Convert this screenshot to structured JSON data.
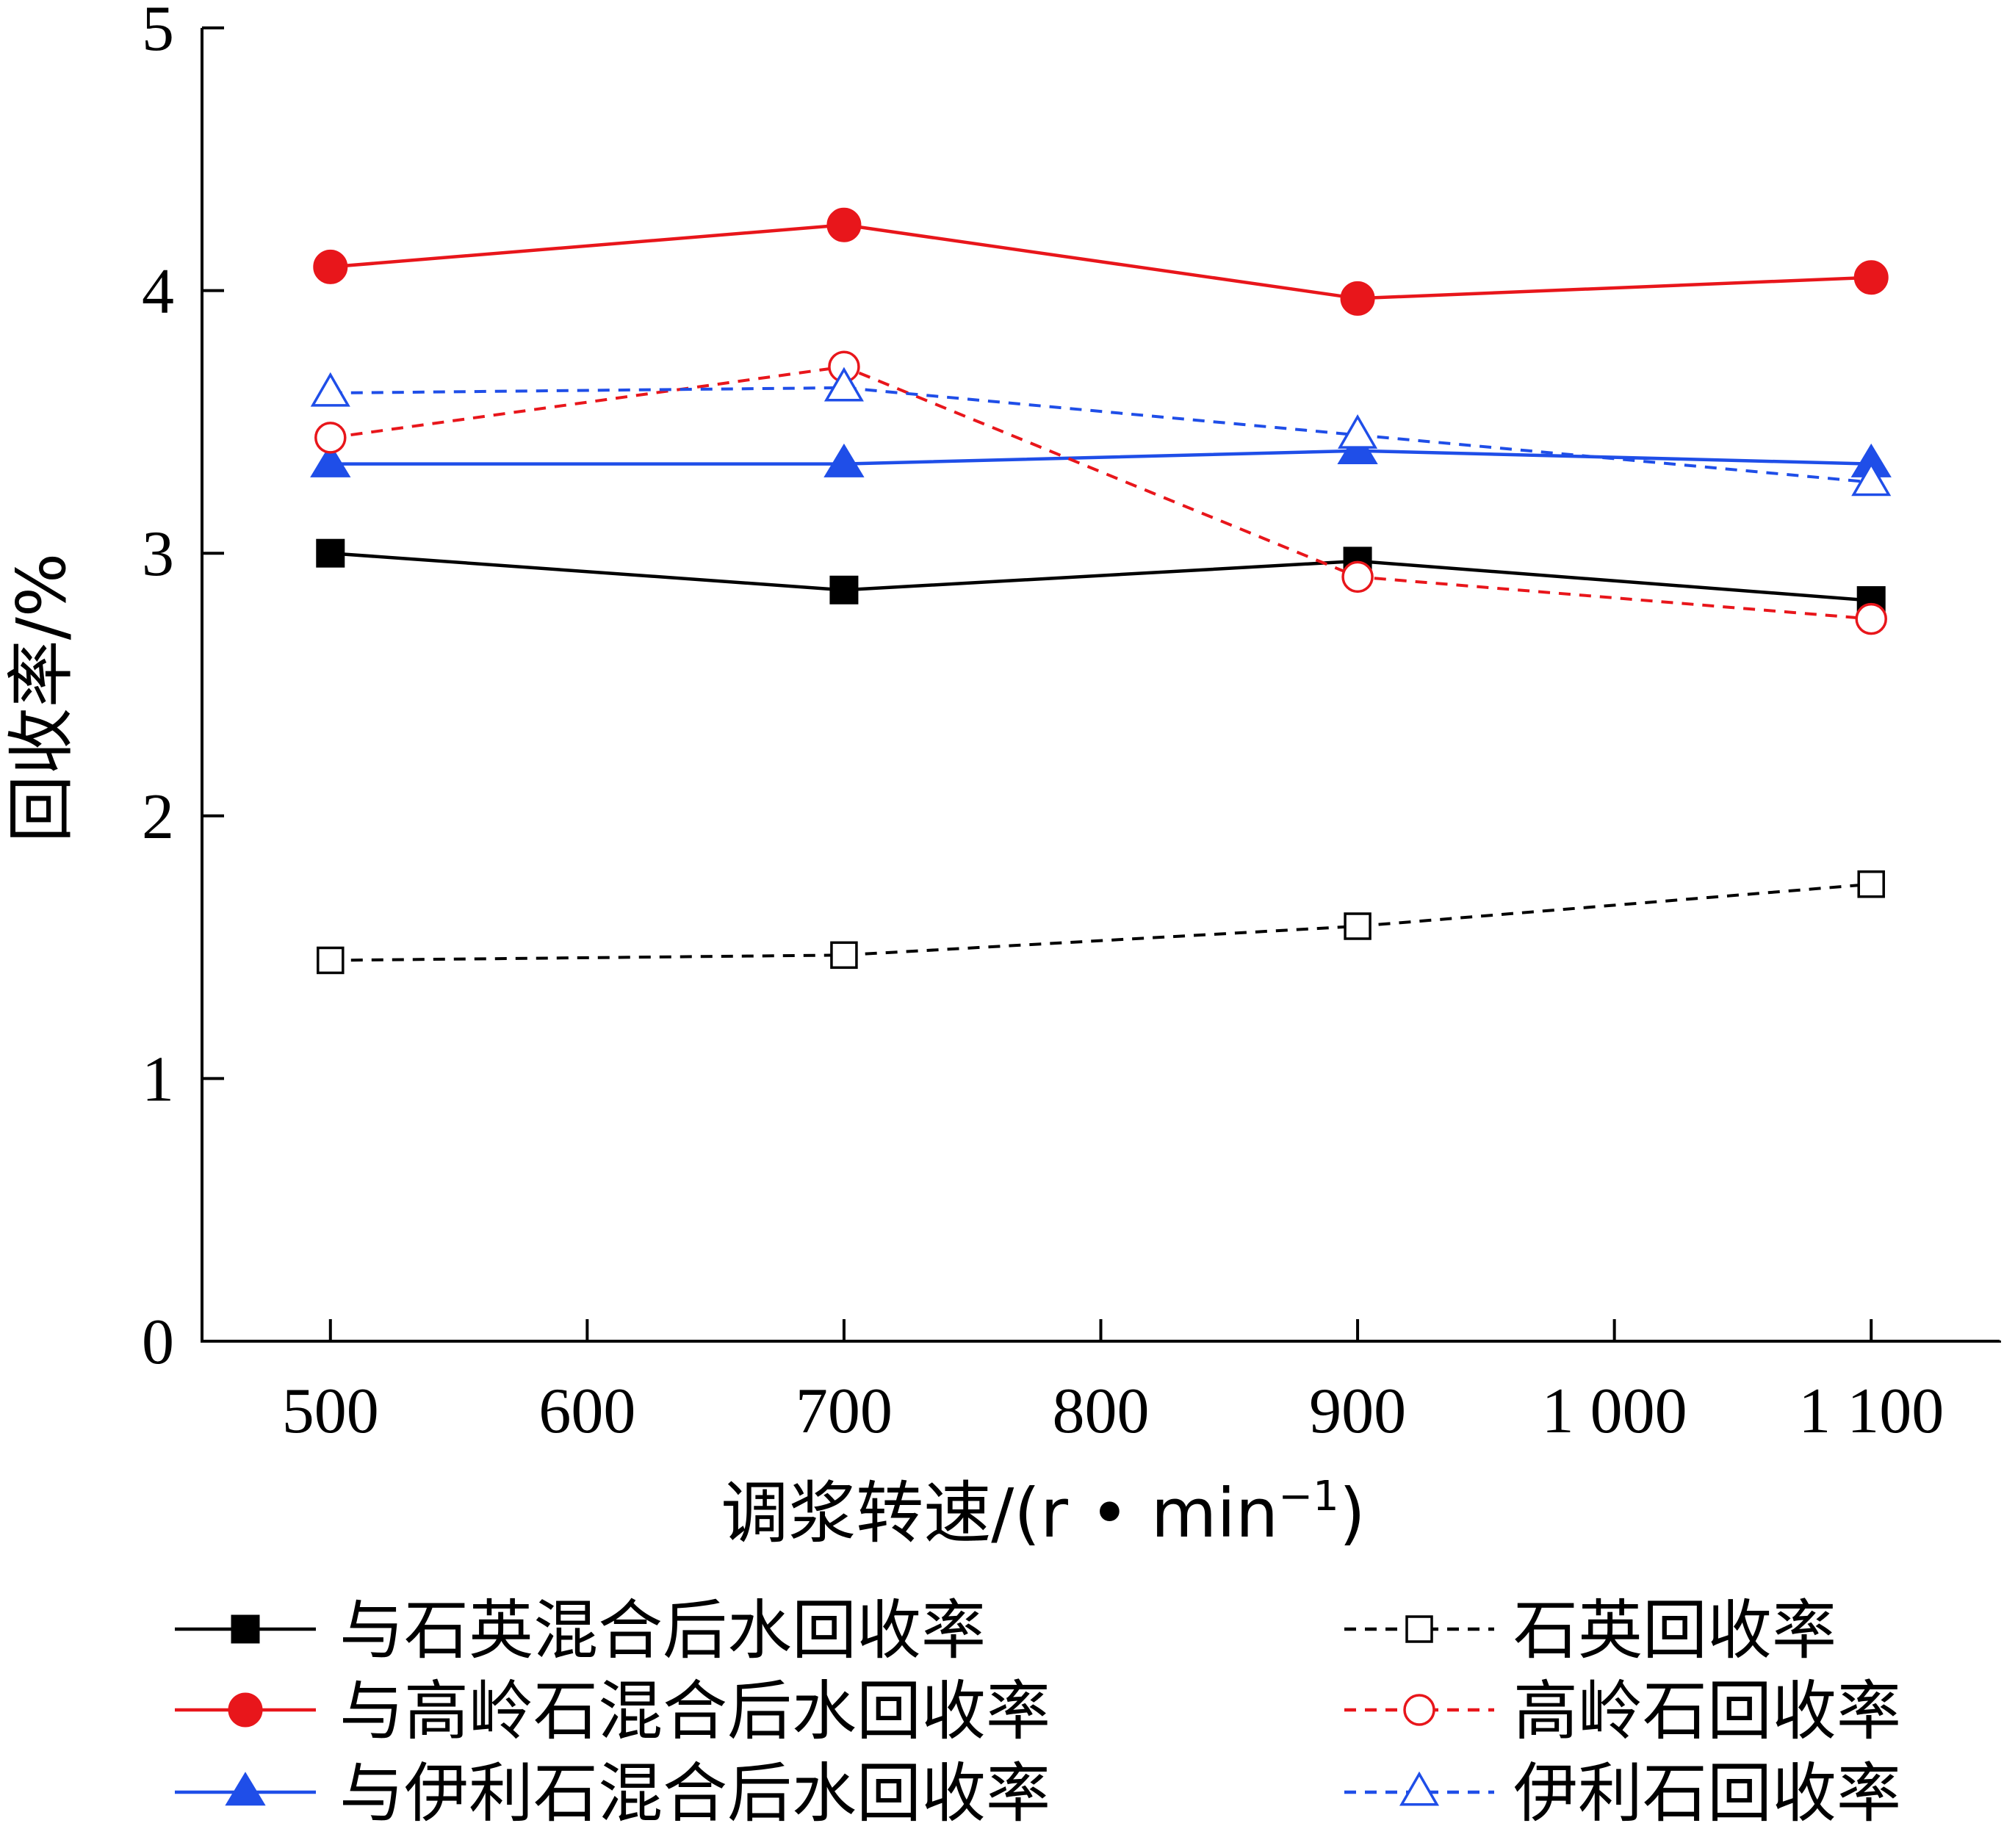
{
  "chart_data": {
    "type": "line",
    "xlabel": "调浆转速/(r • min",
    "xlabel_sup": "−1",
    "xlabel_close": ")",
    "ylabel": "回收率/%",
    "xlim": [
      450,
      1150
    ],
    "ylim": [
      0,
      5
    ],
    "x_ticks": [
      500,
      600,
      700,
      800,
      900,
      1000,
      1100
    ],
    "x_tick_labels": [
      "500",
      "600",
      "700",
      "800",
      "900",
      "1 000",
      "1 100"
    ],
    "y_ticks": [
      0,
      1,
      2,
      3,
      4,
      5
    ],
    "y_tick_labels": [
      "0",
      "1",
      "2",
      "3",
      "4",
      "5"
    ],
    "grid": false,
    "legend_position": "bottom",
    "x": [
      500,
      700,
      900,
      1100
    ],
    "series": [
      {
        "name": "与石英混合后水回收率",
        "values": [
          3.0,
          2.86,
          2.97,
          2.82
        ],
        "color": "#000000",
        "dash": false,
        "marker": "square",
        "filled": true
      },
      {
        "name": "与高岭石混合后水回收率",
        "values": [
          4.09,
          4.25,
          3.97,
          4.05
        ],
        "color": "#e8161b",
        "dash": false,
        "marker": "circle",
        "filled": true
      },
      {
        "name": "与伊利石混合后水回收率",
        "values": [
          3.34,
          3.34,
          3.39,
          3.34
        ],
        "color": "#1f4ee8",
        "dash": false,
        "marker": "triangle",
        "filled": true
      },
      {
        "name": "石英回收率",
        "values": [
          1.45,
          1.47,
          1.58,
          1.74
        ],
        "color": "#000000",
        "dash": true,
        "marker": "square",
        "filled": false
      },
      {
        "name": "高岭石回收率",
        "values": [
          3.44,
          3.71,
          2.91,
          2.75
        ],
        "color": "#e8161b",
        "dash": true,
        "marker": "circle",
        "filled": false
      },
      {
        "name": "伊利石回收率",
        "values": [
          3.61,
          3.63,
          3.45,
          3.27
        ],
        "color": "#1f4ee8",
        "dash": true,
        "marker": "triangle",
        "filled": false
      }
    ]
  }
}
